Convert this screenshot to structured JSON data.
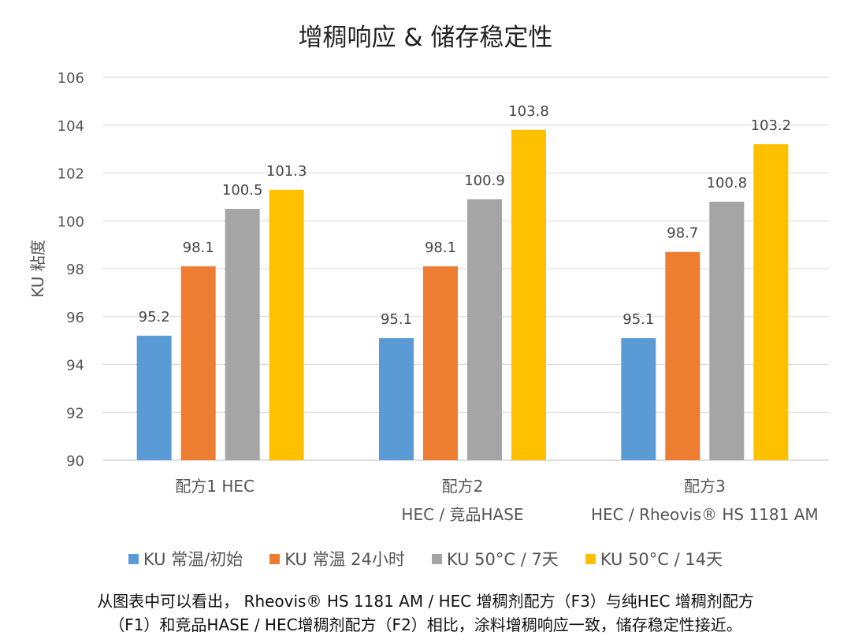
{
  "chart_data": {
    "type": "bar",
    "title": "增稠响应 & 储存稳定性",
    "ylabel": "KU 粘度",
    "xlabel": "",
    "ylim": [
      90,
      106
    ],
    "yticks": [
      90,
      92,
      94,
      96,
      98,
      100,
      102,
      104,
      106
    ],
    "grid": true,
    "legend_position": "bottom",
    "categories": [
      {
        "line1": "配方1  HEC",
        "line2": ""
      },
      {
        "line1": "配方2",
        "line2": "HEC / 竞品HASE"
      },
      {
        "line1": "配方3",
        "line2": "HEC / Rheovis® HS 1181 AM"
      }
    ],
    "series": [
      {
        "name": "KU 常温/初始",
        "color": "#5B9BD5",
        "values": [
          95.2,
          95.1,
          95.1
        ]
      },
      {
        "name": "KU 常温 24小时",
        "color": "#ED7D31",
        "values": [
          98.1,
          98.1,
          98.7
        ]
      },
      {
        "name": "KU 50°C / 7天",
        "color": "#A5A5A5",
        "values": [
          100.5,
          100.9,
          100.8
        ]
      },
      {
        "name": "KU 50°C / 14天",
        "color": "#FFC000",
        "values": [
          101.3,
          103.8,
          103.2
        ]
      }
    ]
  },
  "caption": {
    "line1": "从图表中可以看出， Rheovis® HS 1181 AM / HEC 增稠剂配方（F3）与纯HEC 增稠剂配方",
    "line2": "（F1）和竞品HASE / HEC增稠剂配方（F2）相比，涂料增稠响应一致，储存稳定性接近。"
  }
}
